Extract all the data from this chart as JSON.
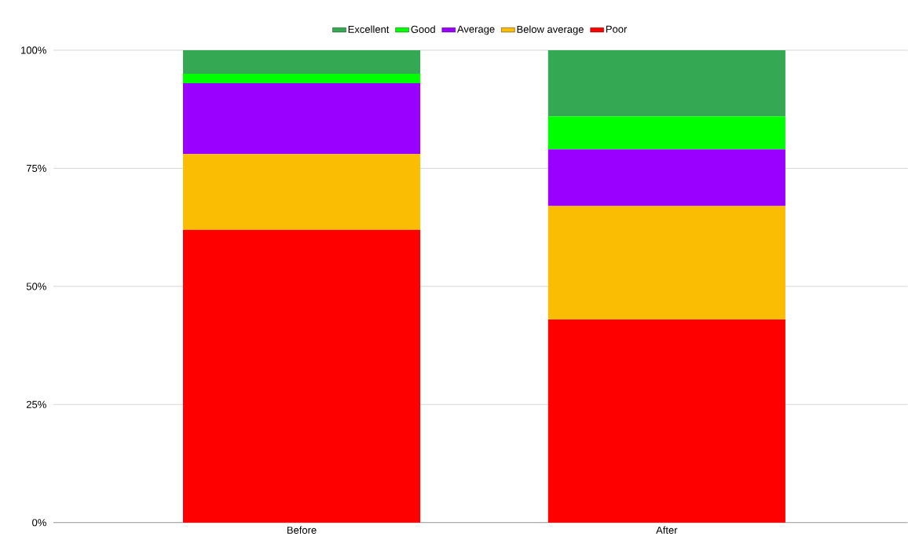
{
  "chart_data": {
    "type": "bar",
    "stacked": true,
    "categories": [
      "Before",
      "After"
    ],
    "series": [
      {
        "name": "Poor",
        "color": "#ff0000",
        "values": [
          62,
          43
        ]
      },
      {
        "name": "Below average",
        "color": "#fbbc04",
        "values": [
          16,
          24
        ]
      },
      {
        "name": "Average",
        "color": "#9900ff",
        "values": [
          15,
          12
        ]
      },
      {
        "name": "Good",
        "color": "#00ff00",
        "values": [
          2,
          7
        ]
      },
      {
        "name": "Excellent",
        "color": "#34a853",
        "values": [
          5,
          14
        ]
      }
    ],
    "ylim": [
      0,
      100
    ],
    "yticks": [
      {
        "value": 0,
        "label": "0%"
      },
      {
        "value": 25,
        "label": "25%"
      },
      {
        "value": 50,
        "label": "50%"
      },
      {
        "value": 75,
        "label": "75%"
      },
      {
        "value": 100,
        "label": "100%"
      }
    ],
    "grid": "y",
    "legend": "top"
  }
}
